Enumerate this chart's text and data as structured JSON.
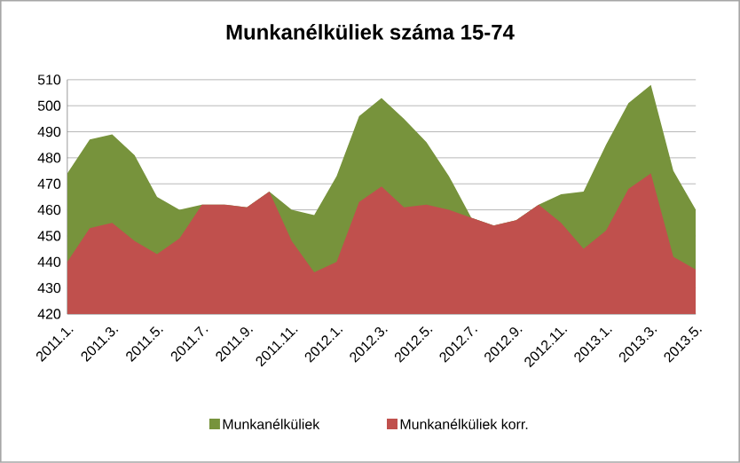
{
  "chart_data": {
    "type": "area",
    "title": "Munkanélküliek száma 15-74",
    "categories": [
      "2011.1.",
      null,
      "2011.3.",
      null,
      "2011.5.",
      null,
      "2011.7.",
      null,
      "2011.9.",
      null,
      "2011.11.",
      null,
      "2012.1.",
      null,
      "2012.3.",
      null,
      "2012.5.",
      null,
      "2012.7.",
      null,
      "2012.9.",
      null,
      "2012.11.",
      null,
      "2013.1.",
      null,
      "2013.3.",
      null,
      "2013.5."
    ],
    "series": [
      {
        "name": "Munkanélküliek",
        "color": "#77933c",
        "values": [
          474,
          487,
          489,
          481,
          465,
          460,
          462,
          462,
          461,
          467,
          460,
          458,
          473,
          496,
          503,
          495,
          486,
          473,
          457,
          454,
          456,
          462,
          466,
          467,
          485,
          501,
          508,
          475,
          460
        ]
      },
      {
        "name": "Munkanélküliek korr.",
        "color": "#c0504d",
        "values": [
          440,
          453,
          455,
          448,
          443,
          449,
          462,
          462,
          461,
          467,
          448,
          436,
          440,
          463,
          469,
          461,
          462,
          460,
          457,
          454,
          456,
          462,
          455,
          445,
          452,
          468,
          474,
          442,
          437
        ]
      }
    ],
    "ylim": [
      420,
      510
    ],
    "yticks": [
      420,
      430,
      440,
      450,
      460,
      470,
      480,
      490,
      500,
      510
    ],
    "grid": "y",
    "legend": "bottom"
  }
}
